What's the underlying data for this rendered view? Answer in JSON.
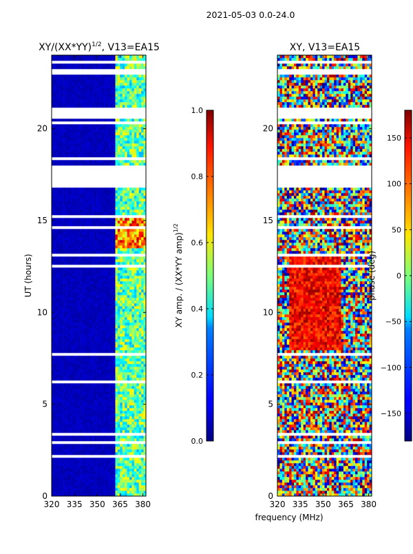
{
  "figure": {
    "suptitle": "2021-05-03 0.0-24.0",
    "shared_xlabel": "frequency (MHz)"
  },
  "chart_data": [
    {
      "type": "heatmap",
      "title_main": "XY/(XX*YY)",
      "title_sup": "1/2",
      "title_tail": ", V13=EA15",
      "ylabel": "UT (hours)",
      "xlim": [
        320,
        382
      ],
      "ylim": [
        0,
        24
      ],
      "xticks": [
        320,
        335,
        350,
        365,
        380
      ],
      "yticks": [
        0,
        5,
        10,
        15,
        20
      ],
      "colorbar": {
        "label_main": "XY amp. / (XX*YY amp)",
        "label_sup": "1/2",
        "range": [
          0.0,
          1.0
        ],
        "ticks": [
          "0.0",
          "0.2",
          "0.4",
          "0.6",
          "0.8",
          "1.0"
        ],
        "tick_values": [
          0.0,
          0.2,
          0.4,
          0.6,
          0.8,
          1.0
        ],
        "colormap": "jet"
      },
      "data_gaps_hours": [
        [
          17.0,
          18.0
        ],
        [
          20.6,
          21.2
        ],
        [
          23.0,
          23.2
        ]
      ],
      "notes": "Normalized amplitude mostly ~0.05; elevated (0.4-0.9) in 362-382 MHz band; strongest near 14-15 h"
    },
    {
      "type": "heatmap",
      "title": "XY, V13=EA15",
      "xlim": [
        320,
        382
      ],
      "ylim": [
        0,
        24
      ],
      "xticks": [
        320,
        335,
        350,
        365,
        380
      ],
      "yticks": [
        0,
        5,
        10,
        15,
        20
      ],
      "colorbar": {
        "label": "phase (deg)",
        "range": [
          -180,
          180
        ],
        "ticks": [
          "−150",
          "−100",
          "−50",
          "0",
          "50",
          "100",
          "150"
        ],
        "tick_values": [
          -150,
          -100,
          -50,
          0,
          50,
          100,
          150
        ],
        "colormap": "jet"
      },
      "data_gaps_hours": [
        [
          17.0,
          18.0
        ],
        [
          20.6,
          21.2
        ],
        [
          23.0,
          23.2
        ]
      ],
      "notes": "Phase noisy across band; predominantly 100-180 deg between 8-13 h at 330-360 MHz"
    }
  ],
  "colors": {
    "jet_low": "#00007f",
    "jet_high": "#7f0000",
    "gap": "#ffffff"
  }
}
